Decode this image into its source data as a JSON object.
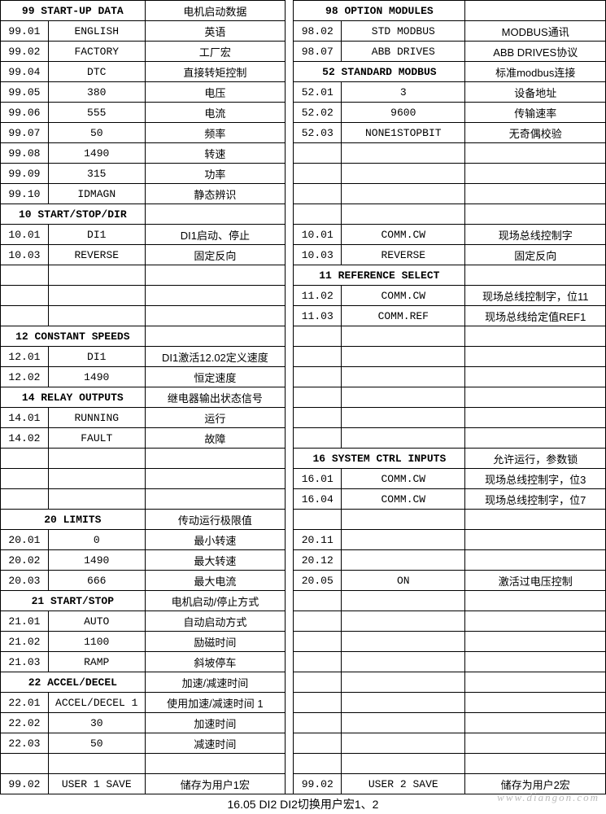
{
  "rows": [
    {
      "L": {
        "type": "merge2",
        "a": "99 START-UP DATA",
        "b": "电机启动数据"
      },
      "R": {
        "type": "merge2",
        "a": "98 OPTION MODULES",
        "b": ""
      }
    },
    {
      "L": {
        "type": "data",
        "p": "99.01",
        "v": "ENGLISH",
        "d": "英语"
      },
      "R": {
        "type": "data",
        "p": "98.02",
        "v": "STD MODBUS",
        "d": "MODBUS通讯"
      }
    },
    {
      "L": {
        "type": "data",
        "p": "99.02",
        "v": "FACTORY",
        "d": "工厂宏"
      },
      "R": {
        "type": "data",
        "p": "98.07",
        "v": "ABB DRIVES",
        "d": "ABB DRIVES协议"
      }
    },
    {
      "L": {
        "type": "data",
        "p": "99.04",
        "v": "DTC",
        "d": "直接转矩控制"
      },
      "R": {
        "type": "merge2",
        "a": "52 STANDARD MODBUS",
        "b": "标准modbus连接"
      }
    },
    {
      "L": {
        "type": "data",
        "p": "99.05",
        "v": "380",
        "d": "电压"
      },
      "R": {
        "type": "data",
        "p": "52.01",
        "v": "3",
        "d": "设备地址"
      }
    },
    {
      "L": {
        "type": "data",
        "p": "99.06",
        "v": "555",
        "d": "电流"
      },
      "R": {
        "type": "data",
        "p": "52.02",
        "v": "9600",
        "d": "传输速率"
      }
    },
    {
      "L": {
        "type": "data",
        "p": "99.07",
        "v": "50",
        "d": "频率"
      },
      "R": {
        "type": "data",
        "p": "52.03",
        "v": "NONE1STOPBIT",
        "d": "无奇偶校验"
      }
    },
    {
      "L": {
        "type": "data",
        "p": "99.08",
        "v": "1490",
        "d": "转速"
      },
      "R": {
        "type": "empty"
      }
    },
    {
      "L": {
        "type": "data",
        "p": "99.09",
        "v": "315",
        "d": "功率"
      },
      "R": {
        "type": "empty"
      }
    },
    {
      "L": {
        "type": "data",
        "p": "99.10",
        "v": "IDMAGN",
        "d": "静态辨识"
      },
      "R": {
        "type": "empty"
      }
    },
    {
      "L": {
        "type": "merge2",
        "a": "10 START/STOP/DIR",
        "b": ""
      },
      "R": {
        "type": "empty"
      }
    },
    {
      "L": {
        "type": "data",
        "p": "10.01",
        "v": "DI1",
        "d": "DI1启动、停止"
      },
      "R": {
        "type": "data",
        "p": "10.01",
        "v": "COMM.CW",
        "d": "现场总线控制字"
      }
    },
    {
      "L": {
        "type": "data",
        "p": "10.03",
        "v": "REVERSE",
        "d": "固定反向"
      },
      "R": {
        "type": "data",
        "p": "10.03",
        "v": "REVERSE",
        "d": "固定反向"
      }
    },
    {
      "L": {
        "type": "empty"
      },
      "R": {
        "type": "merge2",
        "a": "11 REFERENCE SELECT",
        "b": ""
      }
    },
    {
      "L": {
        "type": "empty"
      },
      "R": {
        "type": "data",
        "p": "11.02",
        "v": "COMM.CW",
        "d": "现场总线控制字，位11"
      }
    },
    {
      "L": {
        "type": "empty"
      },
      "R": {
        "type": "data",
        "p": "11.03",
        "v": "COMM.REF",
        "d": "现场总线给定值REF1"
      }
    },
    {
      "L": {
        "type": "merge2",
        "a": "12 CONSTANT SPEEDS",
        "b": ""
      },
      "R": {
        "type": "empty"
      }
    },
    {
      "L": {
        "type": "data",
        "p": "12.01",
        "v": "DI1",
        "d": "DI1激活12.02定义速度"
      },
      "R": {
        "type": "empty"
      }
    },
    {
      "L": {
        "type": "data",
        "p": "12.02",
        "v": "1490",
        "d": "恒定速度"
      },
      "R": {
        "type": "empty"
      }
    },
    {
      "L": {
        "type": "merge2",
        "a": "14 RELAY OUTPUTS",
        "b": "继电器输出状态信号"
      },
      "R": {
        "type": "empty"
      }
    },
    {
      "L": {
        "type": "data",
        "p": "14.01",
        "v": "RUNNING",
        "d": "运行"
      },
      "R": {
        "type": "empty"
      }
    },
    {
      "L": {
        "type": "data",
        "p": "14.02",
        "v": "FAULT",
        "d": "故障"
      },
      "R": {
        "type": "empty"
      }
    },
    {
      "L": {
        "type": "empty"
      },
      "R": {
        "type": "merge2",
        "a": "16 SYSTEM CTRL INPUTS",
        "b": "允许运行，参数锁"
      }
    },
    {
      "L": {
        "type": "empty"
      },
      "R": {
        "type": "data",
        "p": "16.01",
        "v": "COMM.CW",
        "d": "现场总线控制字，位3"
      }
    },
    {
      "L": {
        "type": "empty"
      },
      "R": {
        "type": "data",
        "p": "16.04",
        "v": "COMM.CW",
        "d": "现场总线控制字，位7"
      }
    },
    {
      "L": {
        "type": "merge2",
        "a": "20 LIMITS",
        "b": "传动运行极限值"
      },
      "R": {
        "type": "empty"
      }
    },
    {
      "L": {
        "type": "data",
        "p": "20.01",
        "v": "0",
        "d": "最小转速"
      },
      "R": {
        "type": "data",
        "p": "20.11",
        "v": "",
        "d": ""
      }
    },
    {
      "L": {
        "type": "data",
        "p": "20.02",
        "v": "1490",
        "d": "最大转速"
      },
      "R": {
        "type": "data",
        "p": "20.12",
        "v": "",
        "d": ""
      }
    },
    {
      "L": {
        "type": "data",
        "p": "20.03",
        "v": "666",
        "d": "最大电流"
      },
      "R": {
        "type": "data",
        "p": "20.05",
        "v": "ON",
        "d": "激活过电压控制"
      }
    },
    {
      "L": {
        "type": "merge2",
        "a": "21 START/STOP",
        "b": "电机启动/停止方式"
      },
      "R": {
        "type": "empty"
      }
    },
    {
      "L": {
        "type": "data",
        "p": "21.01",
        "v": "AUTO",
        "d": "自动启动方式"
      },
      "R": {
        "type": "empty"
      }
    },
    {
      "L": {
        "type": "data",
        "p": "21.02",
        "v": "1100",
        "d": "励磁时间"
      },
      "R": {
        "type": "empty"
      }
    },
    {
      "L": {
        "type": "data",
        "p": "21.03",
        "v": "RAMP",
        "d": "斜坡停车"
      },
      "R": {
        "type": "empty"
      }
    },
    {
      "L": {
        "type": "merge2",
        "a": "22 ACCEL/DECEL",
        "b": "加速/减速时间"
      },
      "R": {
        "type": "empty"
      }
    },
    {
      "L": {
        "type": "data",
        "p": "22.01",
        "v": "ACCEL/DECEL 1",
        "d": "使用加速/减速时间 1"
      },
      "R": {
        "type": "empty"
      }
    },
    {
      "L": {
        "type": "data",
        "p": "22.02",
        "v": "30",
        "d": "加速时间"
      },
      "R": {
        "type": "empty"
      }
    },
    {
      "L": {
        "type": "data",
        "p": "22.03",
        "v": "50",
        "d": "减速时间"
      },
      "R": {
        "type": "empty"
      }
    },
    {
      "L": {
        "type": "empty"
      },
      "R": {
        "type": "empty"
      }
    },
    {
      "L": {
        "type": "data",
        "p": "99.02",
        "v": "USER 1 SAVE",
        "d": "储存为用户1宏"
      },
      "R": {
        "type": "data",
        "p": "99.02",
        "v": "USER 2 SAVE",
        "d": "储存为用户2宏"
      }
    }
  ],
  "footer": "16.05  DI2  DI2切换用户宏1、2",
  "watermark": "www.diangon.com"
}
